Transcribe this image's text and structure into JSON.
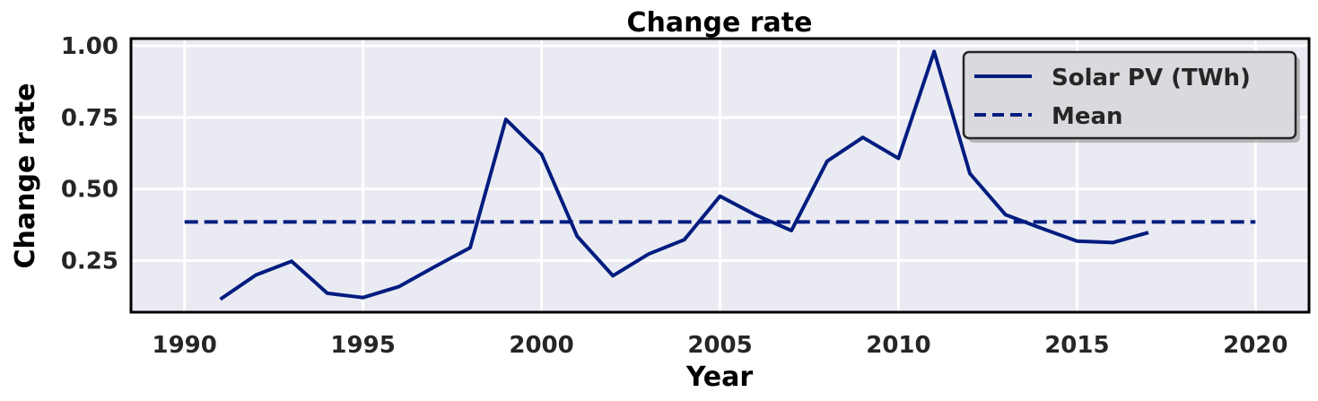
{
  "chart_data": {
    "type": "line",
    "title": "Change rate",
    "xlabel": "Year",
    "ylabel": "Change rate",
    "xlim": [
      1988.5,
      2021.5
    ],
    "ylim": [
      0.07,
      1.025
    ],
    "x_ticks": [
      1990,
      1995,
      2000,
      2005,
      2010,
      2015,
      2020
    ],
    "y_ticks": [
      0.25,
      0.5,
      0.75,
      1.0
    ],
    "y_tick_labels": [
      "0.25",
      "0.50",
      "0.75",
      "1.00"
    ],
    "grid": true,
    "legend_position": "top-right",
    "background_color": "#eaeaf2",
    "series": [
      {
        "name": "Solar PV (TWh)",
        "style": "solid",
        "color": "#001c7f",
        "x": [
          1991,
          1992,
          1993,
          1994,
          1995,
          1996,
          1997,
          1998,
          1999,
          2000,
          2001,
          2002,
          2003,
          2004,
          2005,
          2006,
          2007,
          2008,
          2009,
          2010,
          2011,
          2012,
          2013,
          2014,
          2015,
          2016,
          2017
        ],
        "y": [
          0.115,
          0.2,
          0.248,
          0.136,
          0.121,
          0.159,
          0.228,
          0.295,
          0.743,
          0.621,
          0.335,
          0.197,
          0.273,
          0.323,
          0.475,
          0.409,
          0.355,
          0.597,
          0.68,
          0.607,
          0.98,
          0.554,
          0.41,
          0.363,
          0.318,
          0.313,
          0.348
        ]
      },
      {
        "name": "Mean",
        "style": "dashed",
        "color": "#001c7f",
        "x": [
          1990,
          2020
        ],
        "y": [
          0.385,
          0.385
        ]
      }
    ]
  }
}
